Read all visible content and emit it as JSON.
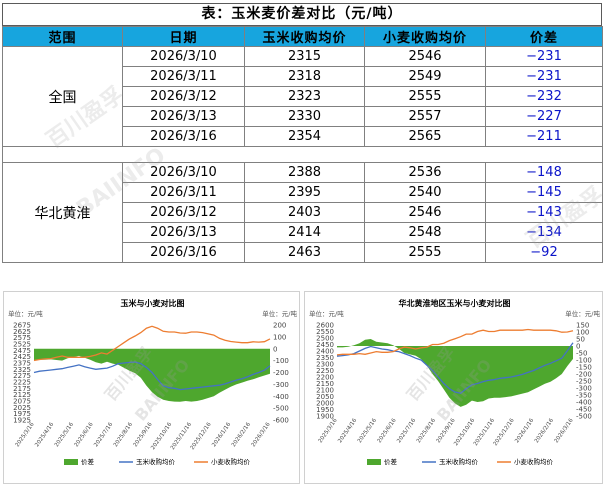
{
  "title": "表：玉米麦价差对比（元/吨）",
  "table": {
    "headers": [
      "范围",
      "日期",
      "玉米收购均价",
      "小麦收购均价",
      "价差"
    ],
    "groups": [
      {
        "region": "全国",
        "rows": [
          {
            "date": "2026/3/10",
            "corn": "2315",
            "wheat": "2546",
            "diff": "−231"
          },
          {
            "date": "2026/3/11",
            "corn": "2318",
            "wheat": "2549",
            "diff": "−231"
          },
          {
            "date": "2026/3/12",
            "corn": "2323",
            "wheat": "2555",
            "diff": "−232"
          },
          {
            "date": "2026/3/13",
            "corn": "2330",
            "wheat": "2557",
            "diff": "−227"
          },
          {
            "date": "2026/3/16",
            "corn": "2354",
            "wheat": "2565",
            "diff": "−211"
          }
        ]
      },
      {
        "region": "华北黄淮",
        "rows": [
          {
            "date": "2026/3/10",
            "corn": "2388",
            "wheat": "2536",
            "diff": "−148"
          },
          {
            "date": "2026/3/11",
            "corn": "2395",
            "wheat": "2540",
            "diff": "−145"
          },
          {
            "date": "2026/3/12",
            "corn": "2403",
            "wheat": "2546",
            "diff": "−143"
          },
          {
            "date": "2026/3/13",
            "corn": "2414",
            "wheat": "2548",
            "diff": "−134"
          },
          {
            "date": "2026/3/16",
            "corn": "2463",
            "wheat": "2555",
            "diff": "−92"
          }
        ]
      }
    ]
  },
  "watermark": [
    "百川盈孚",
    "BAIINFO"
  ],
  "colors": {
    "header": "#17a5de",
    "diff_text": "#0b14c9",
    "spread": "#4ea72e",
    "corn": "#4472c4",
    "wheat": "#ed7d31"
  },
  "chart_data": [
    {
      "type": "line",
      "title": "玉米与小麦对比图",
      "unit_left": "单位：元/吨",
      "unit_right": "单位：元/吨",
      "x_labels": [
        "2025/3/16",
        "2025/4/16",
        "2025/5/16",
        "2025/6/16",
        "2025/7/16",
        "2025/8/16",
        "2025/9/16",
        "2025/10/16",
        "2025/11/16",
        "2025/12/16",
        "2026/1/16",
        "2026/2/16",
        "2026/3/16"
      ],
      "y_left": {
        "min": 1925,
        "max": 2675,
        "ticks": [
          1925,
          1975,
          2025,
          2075,
          2125,
          2175,
          2225,
          2275,
          2325,
          2375,
          2425,
          2475,
          2525,
          2575,
          2625,
          2675
        ]
      },
      "y_right": {
        "min": -600,
        "max": 200,
        "ticks": [
          200,
          100,
          0,
          -100,
          -200,
          -300,
          -400,
          -500,
          -600
        ]
      },
      "legend": [
        "价差",
        "玉米收购均价",
        "小麦收购均价"
      ],
      "legend_position": "bottom",
      "series": [
        {
          "name": "价差",
          "axis": "right",
          "values": [
            -95,
            -93,
            -92,
            -90,
            -95,
            -100,
            -80,
            -70,
            -60,
            -75,
            -92,
            -113,
            -125,
            -110,
            -125,
            -135,
            -160,
            -185,
            -205,
            -245,
            -310,
            -365,
            -405,
            -430,
            -440,
            -445,
            -447,
            -440,
            -445,
            -440,
            -430,
            -415,
            -400,
            -370,
            -345,
            -320,
            -300,
            -285,
            -270,
            -257,
            -240,
            -225,
            -211
          ]
        },
        {
          "name": "玉米收购均价",
          "axis": "left",
          "values": [
            2300,
            2310,
            2315,
            2320,
            2325,
            2330,
            2340,
            2350,
            2360,
            2345,
            2335,
            2325,
            2330,
            2335,
            2350,
            2370,
            2375,
            2380,
            2383,
            2370,
            2340,
            2300,
            2245,
            2195,
            2180,
            2175,
            2165,
            2170,
            2175,
            2180,
            2185,
            2190,
            2195,
            2200,
            2210,
            2225,
            2240,
            2250,
            2265,
            2285,
            2300,
            2318,
            2354
          ]
        },
        {
          "name": "小麦收购均价",
          "axis": "left",
          "values": [
            2395,
            2403,
            2407,
            2410,
            2420,
            2430,
            2420,
            2420,
            2420,
            2420,
            2427,
            2438,
            2455,
            2445,
            2475,
            2505,
            2535,
            2565,
            2588,
            2615,
            2650,
            2665,
            2650,
            2625,
            2620,
            2620,
            2612,
            2610,
            2620,
            2620,
            2615,
            2605,
            2595,
            2570,
            2555,
            2545,
            2540,
            2535,
            2535,
            2542,
            2540,
            2543,
            2565
          ]
        }
      ]
    },
    {
      "type": "line",
      "title": "华北黄淮地区玉米与小麦对比图",
      "unit_left": "单位：元/吨",
      "unit_right": "单位：元/吨",
      "x_labels": [
        "2025/3/16",
        "2025/4/16",
        "2025/5/16",
        "2025/6/16",
        "2025/7/16",
        "2025/8/16",
        "2025/9/16",
        "2025/10/16",
        "2025/11/16",
        "2025/12/16",
        "2026/1/16",
        "2026/2/16",
        "2026/3/16"
      ],
      "y_left": {
        "min": 1900,
        "max": 2600,
        "ticks": [
          1900,
          1950,
          2000,
          2050,
          2100,
          2150,
          2200,
          2250,
          2300,
          2350,
          2400,
          2450,
          2500,
          2550,
          2600
        ]
      },
      "y_right": {
        "min": -500,
        "max": 150,
        "ticks": [
          150,
          100,
          50,
          0,
          -50,
          -100,
          -150,
          -200,
          -250,
          -300,
          -350,
          -400,
          -450,
          -500
        ]
      },
      "legend": [
        "价差",
        "玉米收购均价",
        "小麦收购均价"
      ],
      "legend_position": "bottom",
      "series": [
        {
          "name": "价差",
          "axis": "right",
          "values": [
            -10,
            -10,
            -5,
            5,
            20,
            45,
            50,
            30,
            25,
            20,
            5,
            -20,
            -50,
            -60,
            -70,
            -95,
            -140,
            -200,
            -250,
            -310,
            -370,
            -410,
            -435,
            -420,
            -390,
            -400,
            -395,
            -375,
            -370,
            -370,
            -365,
            -360,
            -350,
            -340,
            -330,
            -310,
            -290,
            -270,
            -255,
            -230,
            -200,
            -143,
            -92
          ]
        },
        {
          "name": "玉米收购均价",
          "axis": "left",
          "values": [
            2360,
            2365,
            2370,
            2380,
            2400,
            2420,
            2435,
            2425,
            2415,
            2410,
            2400,
            2395,
            2380,
            2365,
            2345,
            2330,
            2290,
            2250,
            2200,
            2150,
            2110,
            2085,
            2075,
            2110,
            2140,
            2150,
            2165,
            2175,
            2180,
            2190,
            2195,
            2200,
            2210,
            2220,
            2235,
            2250,
            2270,
            2290,
            2305,
            2325,
            2345,
            2403,
            2463
          ]
        },
        {
          "name": "小麦收购均价",
          "axis": "left",
          "values": [
            2370,
            2375,
            2375,
            2375,
            2380,
            2375,
            2385,
            2395,
            2390,
            2390,
            2395,
            2415,
            2430,
            2425,
            2415,
            2425,
            2430,
            2450,
            2450,
            2460,
            2480,
            2495,
            2510,
            2530,
            2530,
            2550,
            2560,
            2550,
            2550,
            2560,
            2560,
            2560,
            2560,
            2560,
            2565,
            2560,
            2560,
            2560,
            2560,
            2555,
            2545,
            2546,
            2555
          ]
        }
      ]
    }
  ]
}
